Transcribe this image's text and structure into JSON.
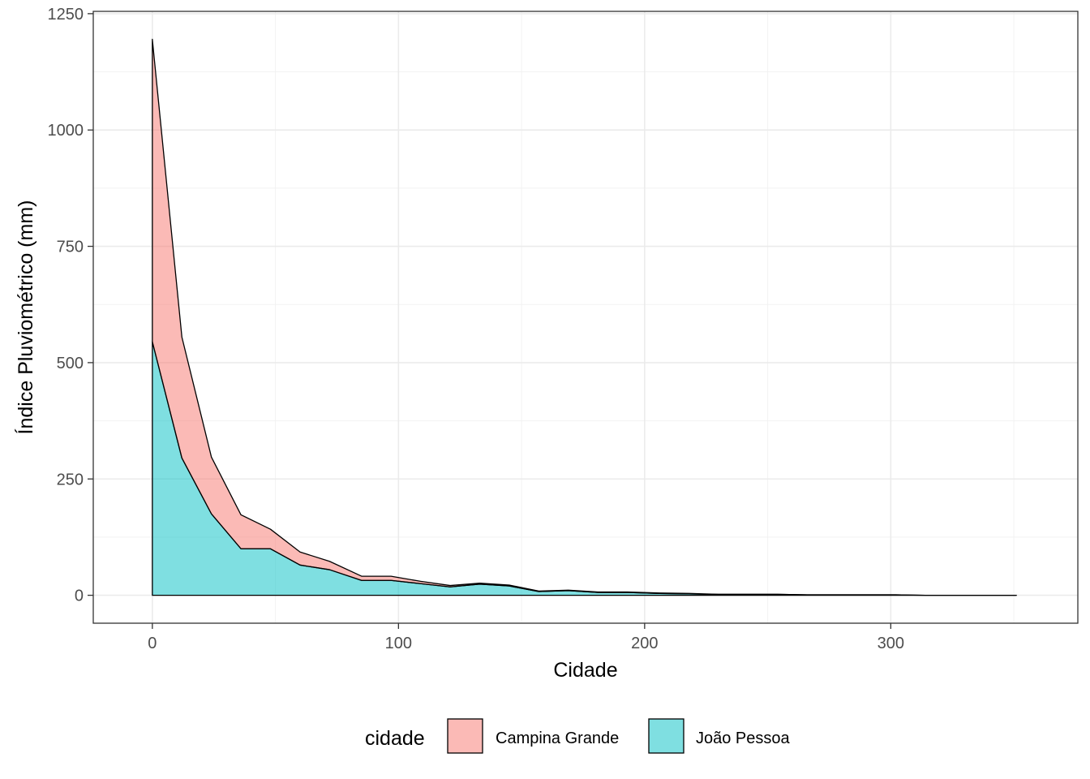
{
  "chart_data": {
    "type": "area",
    "stacked": true,
    "title": "",
    "xlabel": "Cidade",
    "ylabel": "Índice Pluviométrico (mm)",
    "xlim": [
      -24,
      376
    ],
    "ylim": [
      -60,
      1255
    ],
    "x_ticks": [
      0,
      100,
      200,
      300
    ],
    "y_ticks": [
      0,
      250,
      500,
      750,
      1000,
      1250
    ],
    "grid": true,
    "legend": {
      "title": "cidade",
      "position": "bottom"
    },
    "x": [
      0,
      12,
      24,
      36,
      48,
      60,
      72,
      85,
      97,
      109,
      121,
      133,
      145,
      157,
      169,
      181,
      193,
      206,
      218,
      230,
      242,
      254,
      266,
      278,
      290,
      302,
      314,
      326,
      339,
      351
    ],
    "series": [
      {
        "name": "Campina Grande",
        "color": "#F8766D",
        "values": [
          650,
          260,
          122,
          73,
          42,
          28,
          18,
          9,
          9,
          5,
          3,
          2,
          2,
          1,
          1,
          1,
          1,
          1,
          1,
          0,
          0,
          0,
          0,
          0,
          0,
          0,
          0,
          0,
          0,
          0
        ]
      },
      {
        "name": "João Pessoa",
        "color": "#00BFC4",
        "values": [
          545,
          295,
          175,
          100,
          100,
          65,
          55,
          32,
          32,
          25,
          18,
          24,
          20,
          8,
          10,
          6,
          6,
          4,
          3,
          2,
          2,
          2,
          1,
          1,
          1,
          1,
          0,
          0,
          0,
          0
        ]
      }
    ]
  }
}
